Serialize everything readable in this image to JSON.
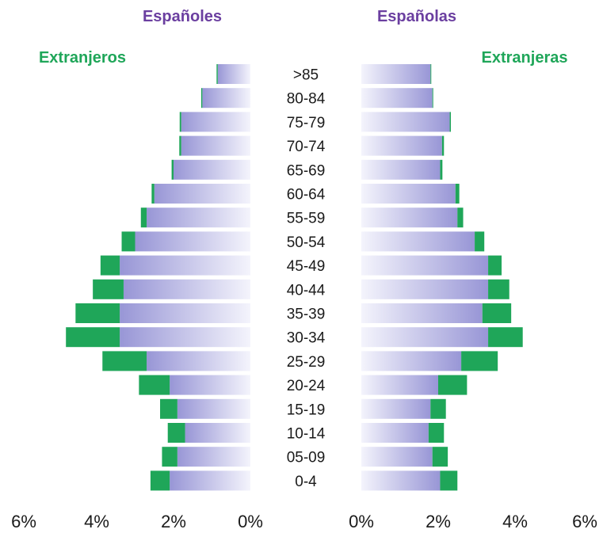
{
  "chart_data": {
    "type": "bar",
    "subtype": "population-pyramid (stacked horizontal bars)",
    "categories": [
      ">85",
      "80-84",
      "75-79",
      "70-74",
      "65-69",
      "60-64",
      "55-59",
      "50-54",
      "45-49",
      "40-44",
      "35-39",
      "30-34",
      "25-29",
      "20-24",
      "15-19",
      "10-14",
      "05-09",
      "0-4"
    ],
    "left": {
      "header": "Españoles",
      "series": [
        {
          "name": "Españoles",
          "color": "#b4b3e6",
          "values": [
            0.85,
            1.25,
            1.8,
            1.8,
            2.0,
            2.5,
            2.7,
            3.0,
            3.4,
            3.3,
            3.4,
            3.4,
            2.7,
            2.1,
            1.9,
            1.7,
            1.9,
            2.1
          ]
        },
        {
          "name": "Extranjeros",
          "color": "#1fa659",
          "values": [
            0.03,
            0.03,
            0.04,
            0.05,
            0.05,
            0.07,
            0.15,
            0.35,
            0.5,
            0.8,
            1.15,
            1.4,
            1.15,
            0.8,
            0.45,
            0.45,
            0.4,
            0.5
          ]
        }
      ],
      "xlim": [
        0,
        6
      ]
    },
    "right": {
      "header": "Españolas",
      "series": [
        {
          "name": "Españolas",
          "color": "#b4b3e6",
          "values": [
            1.8,
            1.85,
            2.3,
            2.1,
            2.05,
            2.45,
            2.5,
            2.95,
            3.3,
            3.3,
            3.15,
            3.3,
            2.6,
            2.0,
            1.8,
            1.75,
            1.85,
            2.05
          ]
        },
        {
          "name": "Extranjeras",
          "color": "#1fa659",
          "values": [
            0.02,
            0.02,
            0.03,
            0.05,
            0.06,
            0.1,
            0.15,
            0.25,
            0.35,
            0.55,
            0.75,
            0.9,
            0.95,
            0.75,
            0.4,
            0.4,
            0.4,
            0.45
          ]
        }
      ],
      "xlim": [
        0,
        6
      ]
    },
    "left_legend_label": "Extranjeros",
    "right_legend_label": "Extranjeras",
    "left_ticks": [
      "6%",
      "4%",
      "2%",
      "0%"
    ],
    "right_ticks": [
      "0%",
      "2%",
      "4%",
      "6%"
    ],
    "header_color": "#6b3fa0",
    "legend_color": "#1fa659",
    "grid": false
  }
}
